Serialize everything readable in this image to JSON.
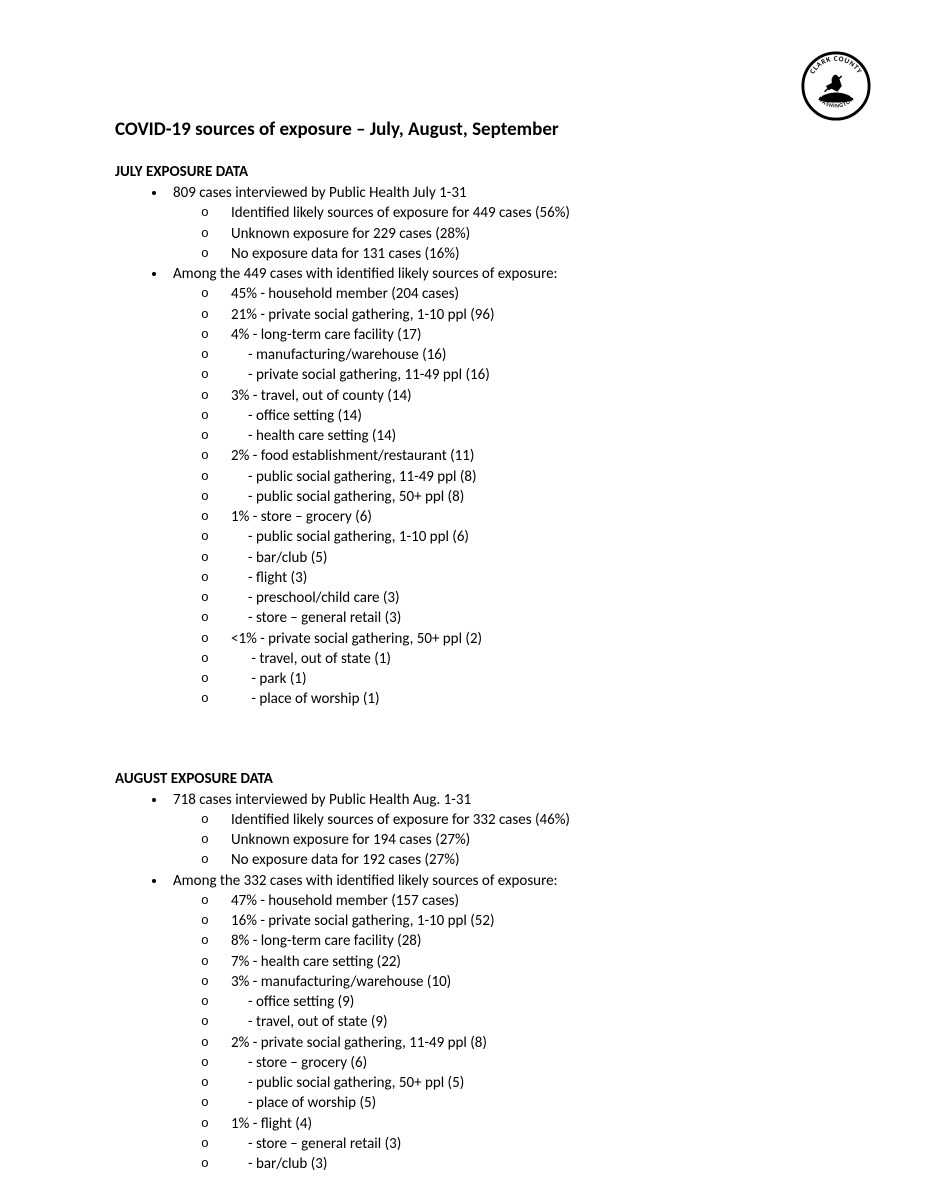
{
  "logo": {
    "text_top": "CLARK COUNTY",
    "text_bottom": "WASHINGTON"
  },
  "title": "COVID-19 sources of exposure – July, August, September",
  "sections": [
    {
      "header": "JULY EXPOSURE DATA",
      "bullets": [
        {
          "text": "809 cases interviewed by Public Health July 1-31",
          "subs": [
            "Identified likely sources of exposure for 449 cases (56%)",
            "Unknown exposure for 229 cases (28%)",
            "No exposure data for 131 cases (16%)"
          ]
        },
        {
          "text": "Among the 449 cases with identified likely sources of exposure:",
          "subs": [
            "45% - household member (204 cases)",
            "21% - private social gathering, 1-10 ppl (96)",
            "4% - long-term care facility (17)",
            "     - manufacturing/warehouse (16)",
            "     - private social gathering, 11-49 ppl (16)",
            "3% - travel, out of county (14)",
            "     - office setting (14)",
            "     - health care setting (14)",
            "2% - food establishment/restaurant (11)",
            "     - public social gathering, 11-49 ppl (8)",
            "     - public social gathering, 50+ ppl (8)",
            "1% - store – grocery (6)",
            "     - public social gathering, 1-10 ppl (6)",
            "     - bar/club (5)",
            "     - flight (3)",
            "     - preschool/child care (3)",
            "     - store – general retail (3)",
            "<1% - private social gathering, 50+ ppl (2)",
            "      - travel, out of state (1)",
            "      - park (1)",
            "      - place of worship (1)"
          ]
        }
      ]
    },
    {
      "header": "AUGUST EXPOSURE DATA",
      "bullets": [
        {
          "text": "718 cases interviewed by Public Health Aug. 1-31",
          "subs": [
            "Identified likely sources of exposure for 332 cases (46%)",
            "Unknown exposure for 194 cases (27%)",
            "No exposure data for 192 cases (27%)"
          ]
        },
        {
          "text": "Among the 332 cases with identified likely sources of exposure:",
          "subs": [
            "47% - household member (157 cases)",
            "16% - private social gathering, 1-10 ppl (52)",
            "8% - long-term care facility (28)",
            "7% - health care setting (22)",
            "3% - manufacturing/warehouse (10)",
            "     - office setting (9)",
            "     - travel, out of state (9)",
            "2% - private social gathering, 11-49 ppl (8)",
            "     - store – grocery (6)",
            "     - public social gathering, 50+ ppl (5)",
            "     - place of worship (5)",
            "1% - flight (4)",
            "     - store – general retail (3)",
            "     - bar/club (3)"
          ]
        }
      ]
    }
  ]
}
